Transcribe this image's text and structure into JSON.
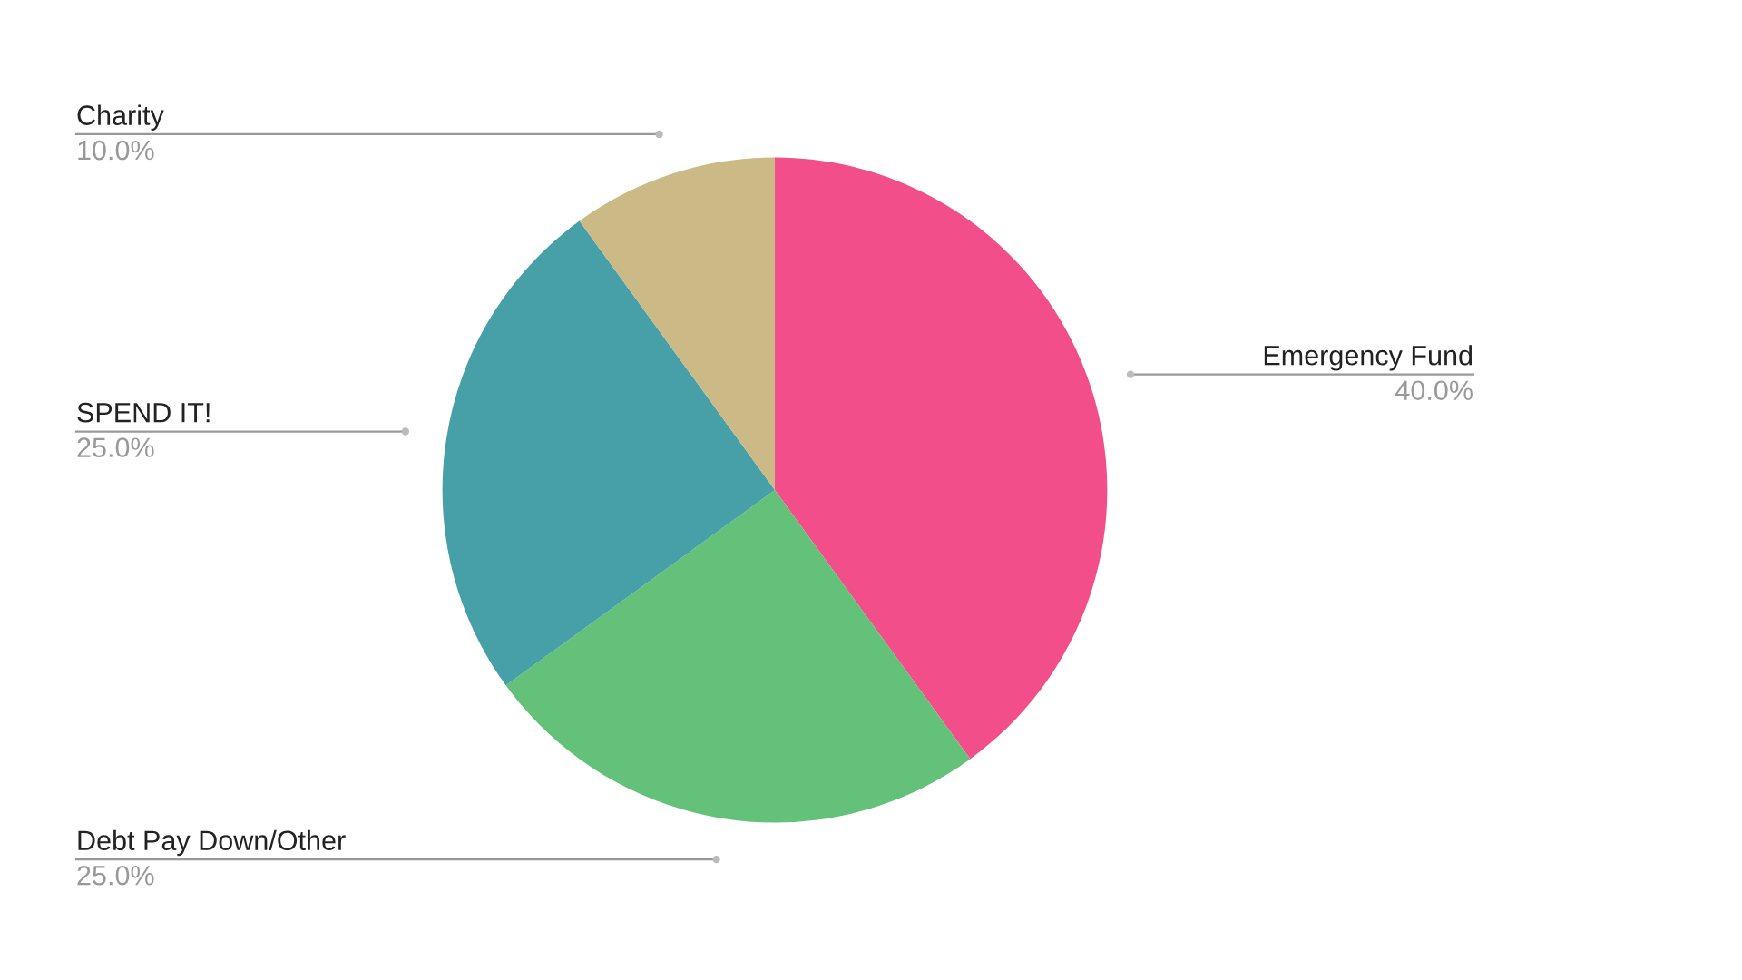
{
  "chart_data": {
    "type": "pie",
    "categories": [
      "Emergency Fund",
      "Debt Pay Down/Other",
      "SPEND IT!",
      "Charity"
    ],
    "values": [
      40,
      25,
      25,
      10
    ],
    "value_labels": [
      "40.0%",
      "25.0%",
      "25.0%",
      "10.0%"
    ],
    "colors": [
      "#f24e8a",
      "#63c17a",
      "#479fa7",
      "#cbb986"
    ],
    "legend": false
  }
}
